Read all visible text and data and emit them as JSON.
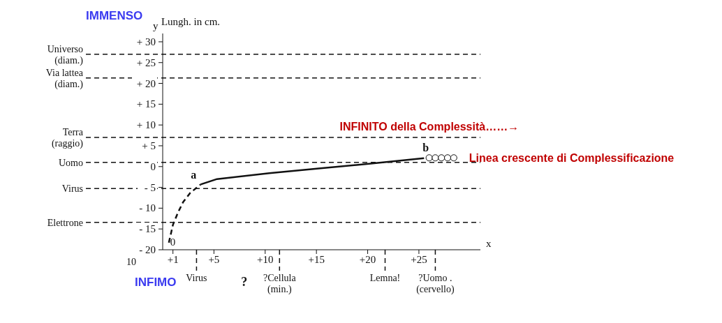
{
  "chart_data": {
    "type": "line",
    "ylabel": "Lungh. in cm.",
    "xlim": [
      0,
      31
    ],
    "ylim": [
      -20,
      32
    ],
    "xticks": [
      {
        "value": 1,
        "label": "+1"
      },
      {
        "value": 5,
        "label": "+5"
      },
      {
        "value": 10,
        "label": "+10"
      },
      {
        "value": 15,
        "label": "+15"
      },
      {
        "value": 20,
        "label": "+20"
      },
      {
        "value": 25,
        "label": "+25"
      }
    ],
    "yticks": [
      {
        "value": -20,
        "label": "- 20"
      },
      {
        "value": -15,
        "label": "- 15"
      },
      {
        "value": -10,
        "label": "- 10"
      },
      {
        "value": -5,
        "label": "- 5"
      },
      0,
      {
        "value": 5,
        "label": "+ 5"
      },
      {
        "value": 10,
        "label": "+ 10"
      },
      {
        "value": 15,
        "label": "+ 15"
      },
      {
        "value": 20,
        "label": "+ 20"
      },
      {
        "value": 25,
        "label": "+ 25"
      },
      {
        "value": 30,
        "label": "+ 30"
      }
    ],
    "series": [
      {
        "color": "#111111",
        "line_style": "dashed",
        "marker": "none",
        "x": [
          0.6,
          1,
          1.5,
          2,
          2.7,
          3.7
        ],
        "values": [
          -18.3,
          -14,
          -11,
          -8.5,
          -6.3,
          -4.3
        ]
      },
      {
        "color": "#111111",
        "line_style": "solid",
        "marker": "none",
        "x": [
          3.7,
          5.3,
          10.4,
          15.4,
          20.3,
          25.5
        ],
        "values": [
          -4.3,
          -3,
          -1.6,
          -0.4,
          0.7,
          2
        ]
      },
      {
        "type": "scatter",
        "color": "#111111",
        "marker": "circle",
        "x": [
          26,
          26.6,
          27.2,
          27.8,
          28.4
        ],
        "values": [
          2.1,
          2.1,
          2.1,
          2.1,
          2.1
        ]
      }
    ],
    "ref_lines": [
      {
        "axis": "y",
        "value": 27,
        "label": "Universo\n(diam.)",
        "line_style": "dashed"
      },
      {
        "axis": "y",
        "value": 21.3,
        "label": "Via lattea\n(diam.)",
        "line_style": "dashed"
      },
      {
        "axis": "y",
        "value": 7,
        "label": "Terra\n(raggio)",
        "line_style": "dashed"
      },
      {
        "axis": "y",
        "value": 1,
        "label": "Uomo",
        "line_style": "dashed"
      },
      {
        "axis": "y",
        "value": -5.3,
        "label": "Virus",
        "line_style": "dashed"
      },
      {
        "axis": "y",
        "value": -13.4,
        "label": "Elettrone",
        "line_style": "dashed"
      },
      {
        "axis": "x",
        "value": 3.3,
        "label": "Virus",
        "line_style": "dashed"
      },
      {
        "axis": "x",
        "value": 11.4,
        "label": "?Cellula\n(min.)",
        "line_style": "dashed"
      },
      {
        "axis": "x",
        "value": 21.7,
        "label": "Lemna!",
        "line_style": "dashed"
      },
      {
        "axis": "x",
        "value": 26.6,
        "label": "?Uomo .\n(cervello)",
        "line_style": "dashed"
      }
    ],
    "annotations": [
      "IMMENSO",
      "INFIMO",
      "y",
      "x",
      "10",
      "?",
      {
        "text": "0",
        "x": 0.6,
        "y": -18.3
      },
      {
        "text": "a",
        "x": 3.7,
        "y": -4.3
      },
      {
        "text": "b",
        "x": 25.5,
        "y": 2
      },
      {
        "text": "INFINITO della Complessità……→",
        "x": 20,
        "y": 7
      },
      {
        "text": "Linea crescente di Complessificazione",
        "x": 28.4,
        "y": 2.1
      }
    ]
  }
}
